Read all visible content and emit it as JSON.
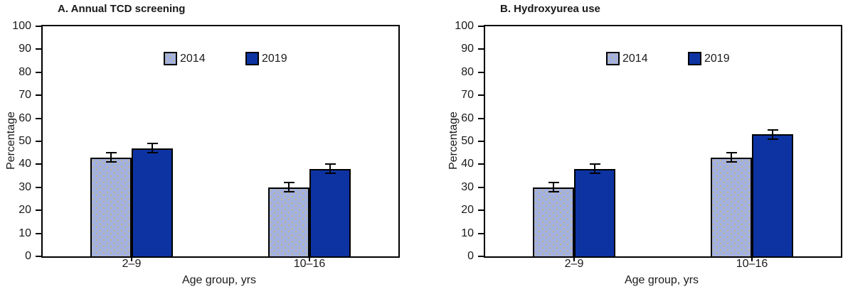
{
  "figure": {
    "background": "#ffffff"
  },
  "colors": {
    "bar_2014_fill": "#a3b1de",
    "bar_2014_dots": "#c5b58a",
    "bar_2019_fill": "#0d33a3",
    "axis": "#000000",
    "text": "#1a1a1a"
  },
  "legend": {
    "items": [
      {
        "label": "2014"
      },
      {
        "label": "2019"
      }
    ]
  },
  "chart_data": [
    {
      "type": "bar",
      "title": "A. Annual TCD screening",
      "xlabel": "Age group, yrs",
      "ylabel": "Percentage",
      "ylim": [
        0,
        100
      ],
      "ytick_step": 10,
      "grid": false,
      "legend_position": "upper-center-inside",
      "error_bars": true,
      "categories": [
        "2–9",
        "10–16"
      ],
      "series": [
        {
          "name": "2014",
          "values": [
            43,
            30
          ],
          "errors": [
            2,
            2
          ]
        },
        {
          "name": "2019",
          "values": [
            47,
            38
          ],
          "errors": [
            2,
            2
          ]
        }
      ]
    },
    {
      "type": "bar",
      "title": "B. Hydroxyurea use",
      "xlabel": "Age group, yrs",
      "ylabel": "Percentage",
      "ylim": [
        0,
        100
      ],
      "ytick_step": 10,
      "grid": false,
      "legend_position": "upper-center-inside",
      "error_bars": true,
      "categories": [
        "2–9",
        "10–16"
      ],
      "series": [
        {
          "name": "2014",
          "values": [
            30,
            43
          ],
          "errors": [
            2,
            2
          ]
        },
        {
          "name": "2019",
          "values": [
            38,
            53
          ],
          "errors": [
            2,
            2
          ]
        }
      ]
    }
  ]
}
